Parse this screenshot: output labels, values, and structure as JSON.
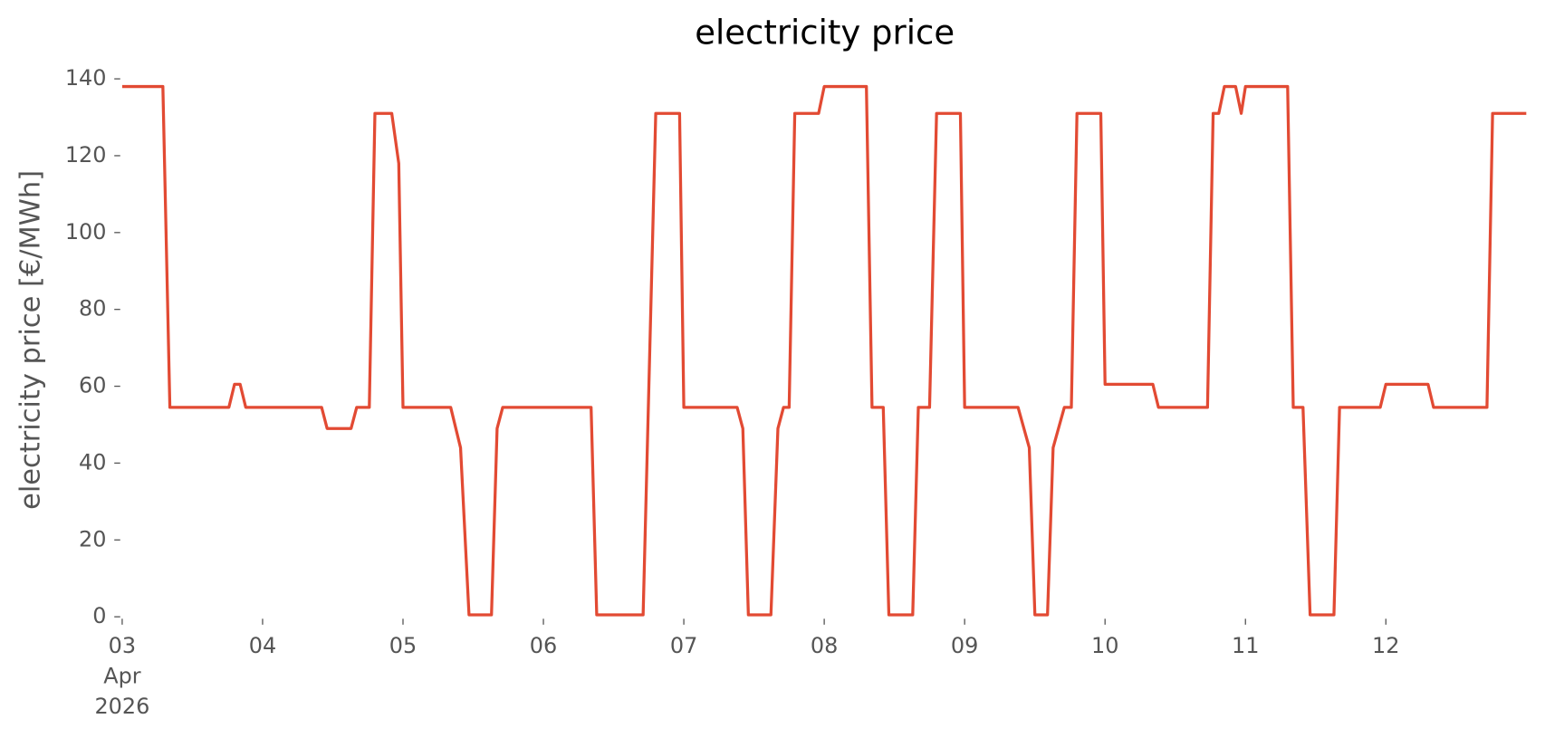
{
  "chart_data": {
    "type": "line",
    "title": "electricity price",
    "y_label": "electricity price [€/MWh]",
    "color": "#e24a33",
    "xlim": [
      3,
      13
    ],
    "ylim": [
      0,
      140
    ],
    "yticks": [
      0,
      20,
      40,
      60,
      80,
      100,
      120,
      140
    ],
    "xticks": [
      {
        "value": 3,
        "label": "03\nApr\n2026"
      },
      {
        "value": 4,
        "label": "04"
      },
      {
        "value": 5,
        "label": "05"
      },
      {
        "value": 6,
        "label": "06"
      },
      {
        "value": 7,
        "label": "07"
      },
      {
        "value": 8,
        "label": "08"
      },
      {
        "value": 9,
        "label": "09"
      },
      {
        "value": 10,
        "label": "10"
      },
      {
        "value": 11,
        "label": "11"
      },
      {
        "value": 12,
        "label": "12"
      }
    ],
    "grid": false,
    "x": [
      3,
      3.29,
      3.34,
      3.76,
      3.8,
      3.84,
      3.88,
      4.42,
      4.46,
      4.63,
      4.67,
      4.76,
      4.8,
      4.92,
      4.97,
      5.0,
      5.34,
      5.41,
      5.47,
      5.63,
      5.67,
      5.71,
      6.34,
      6.38,
      6.71,
      6.8,
      6.97,
      7.0,
      7.38,
      7.42,
      7.46,
      7.62,
      7.67,
      7.71,
      7.75,
      7.79,
      7.96,
      8.0,
      8.3,
      8.34,
      8.42,
      8.46,
      8.63,
      8.67,
      8.75,
      8.8,
      8.97,
      9.0,
      9.38,
      9.46,
      9.5,
      9.59,
      9.63,
      9.71,
      9.76,
      9.8,
      9.97,
      10.0,
      10.34,
      10.38,
      10.73,
      10.77,
      10.81,
      10.85,
      10.93,
      10.97,
      11.0,
      11.3,
      11.34,
      11.41,
      11.46,
      11.63,
      11.67,
      11.96,
      12.0,
      12.3,
      12.34,
      12.72,
      12.76,
      13.0
    ],
    "values": [
      138,
      138,
      54.5,
      54.5,
      60.5,
      60.5,
      54.5,
      54.5,
      49,
      49,
      54.5,
      54.5,
      131,
      131,
      118,
      54.5,
      54.5,
      44,
      0.5,
      0.5,
      49,
      54.5,
      54.5,
      0.5,
      0.5,
      131,
      131,
      54.5,
      54.5,
      49,
      0.5,
      0.5,
      49,
      54.5,
      54.5,
      131,
      131,
      138,
      138,
      54.5,
      54.5,
      0.5,
      0.5,
      54.5,
      54.5,
      131,
      131,
      54.5,
      54.5,
      44,
      0.5,
      0.5,
      44,
      54.5,
      54.5,
      131,
      131,
      60.5,
      60.5,
      54.5,
      54.5,
      131,
      131,
      138,
      138,
      131,
      138,
      138,
      54.5,
      54.5,
      0.5,
      0.5,
      54.5,
      54.5,
      60.5,
      60.5,
      54.5,
      54.5,
      131,
      131
    ]
  }
}
